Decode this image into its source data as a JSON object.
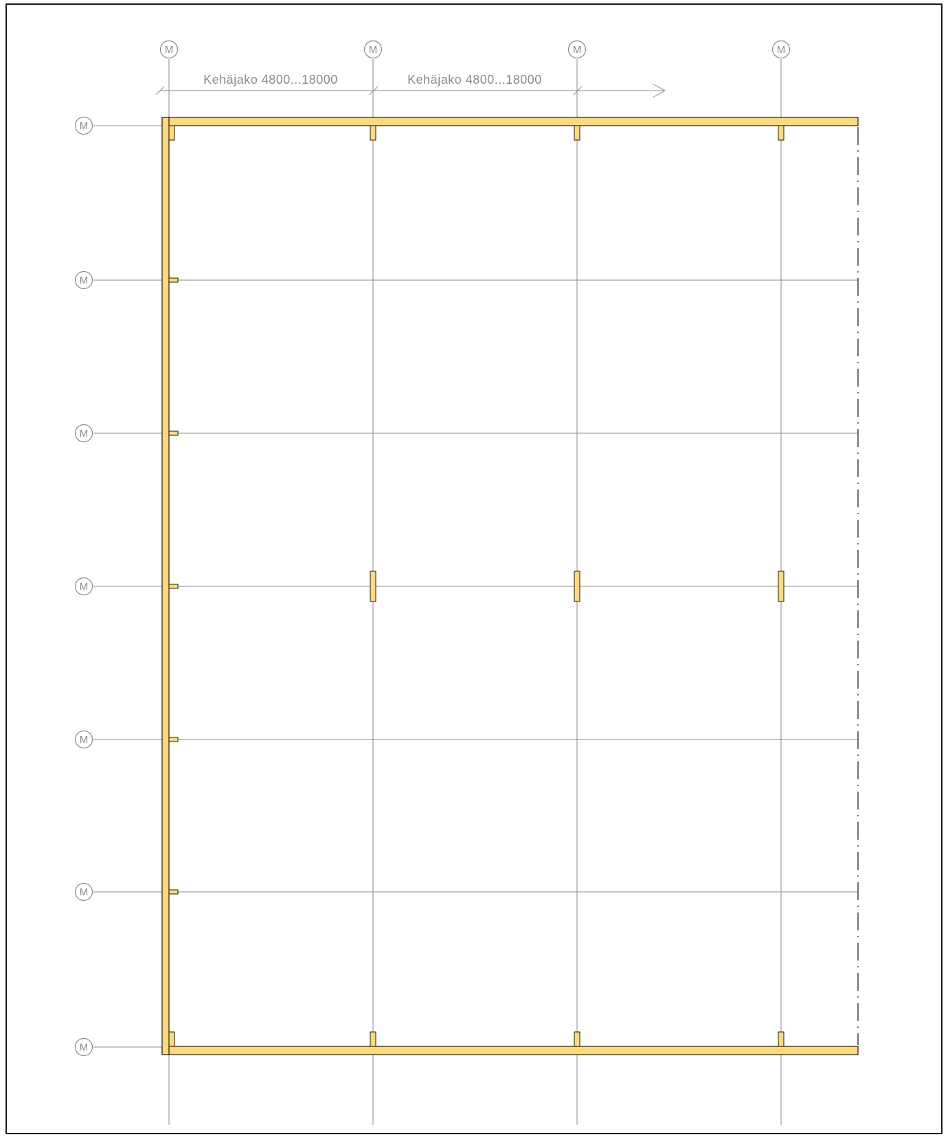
{
  "drawing": {
    "colors": {
      "frame_fill": "#fcd97a",
      "frame_stroke": "#1a1a1a",
      "grid_line": "#8a8a8a",
      "background": "#ffffff"
    },
    "grid_bubbles": {
      "vertical_axes": [
        "M",
        "M",
        "M",
        "M"
      ],
      "horizontal_axes": [
        "M",
        "M",
        "M",
        "M",
        "M",
        "M",
        "M"
      ]
    },
    "dimensions": [
      {
        "label": "Kehäjako  4800...18000"
      },
      {
        "label": "Kehäjako  4800...18000"
      }
    ]
  }
}
